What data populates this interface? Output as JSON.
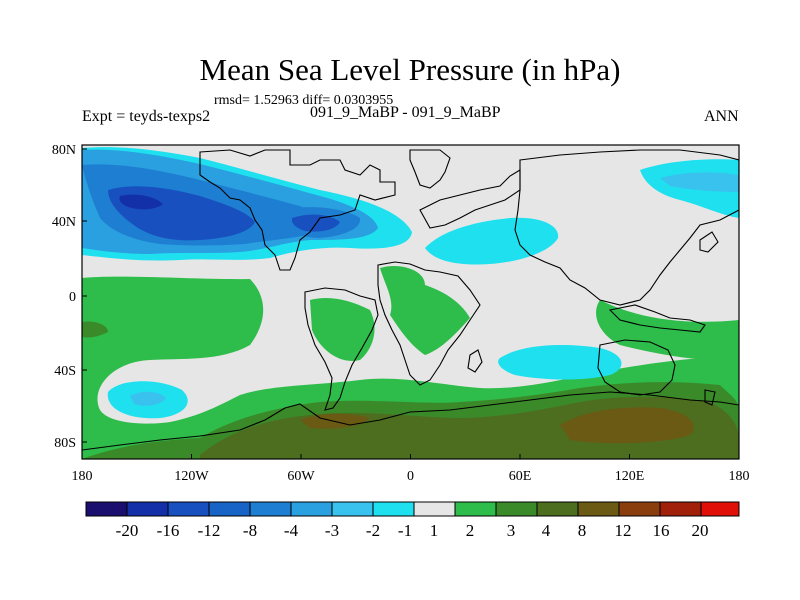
{
  "title": "Mean Sea Level Pressure (in hPa)",
  "stats": "rmsd= 1.52963 diff= 0.0303955",
  "left_label": "Expt = teyds-texps2",
  "center_label": "091_9_MaBP - 091_9_MaBP",
  "right_label": "ANN",
  "x_ticks": [
    "180",
    "120W",
    "60W",
    "0",
    "60E",
    "120E",
    "180"
  ],
  "y_ticks": [
    "80N",
    "40N",
    "0",
    "40S",
    "80S"
  ],
  "colors": {
    "very_low": "#1a0f6e",
    "deep": "#1430a8",
    "darkblue": "#1850c0",
    "blue": "#1e7fd2",
    "midblue": "#2aa0e0",
    "lightblue": "#39c2ee",
    "cyan": "#1fe0ee",
    "neutral": "#e6e6e6",
    "green": "#2ebd4a",
    "dkgreen": "#3a8a2a",
    "olive": "#4d6e1f",
    "brown": "#6a5a14",
    "rust": "#8a3e0e",
    "dkred": "#a0200a",
    "red": "#c21a0a",
    "bright_red": "#e00f08"
  },
  "colorbar": {
    "labels": [
      "-20",
      "-16",
      "-12",
      "-8",
      "-4",
      "-3",
      "-2",
      "-1",
      "1",
      "2",
      "3",
      "4",
      "8",
      "12",
      "16",
      "20"
    ]
  }
}
